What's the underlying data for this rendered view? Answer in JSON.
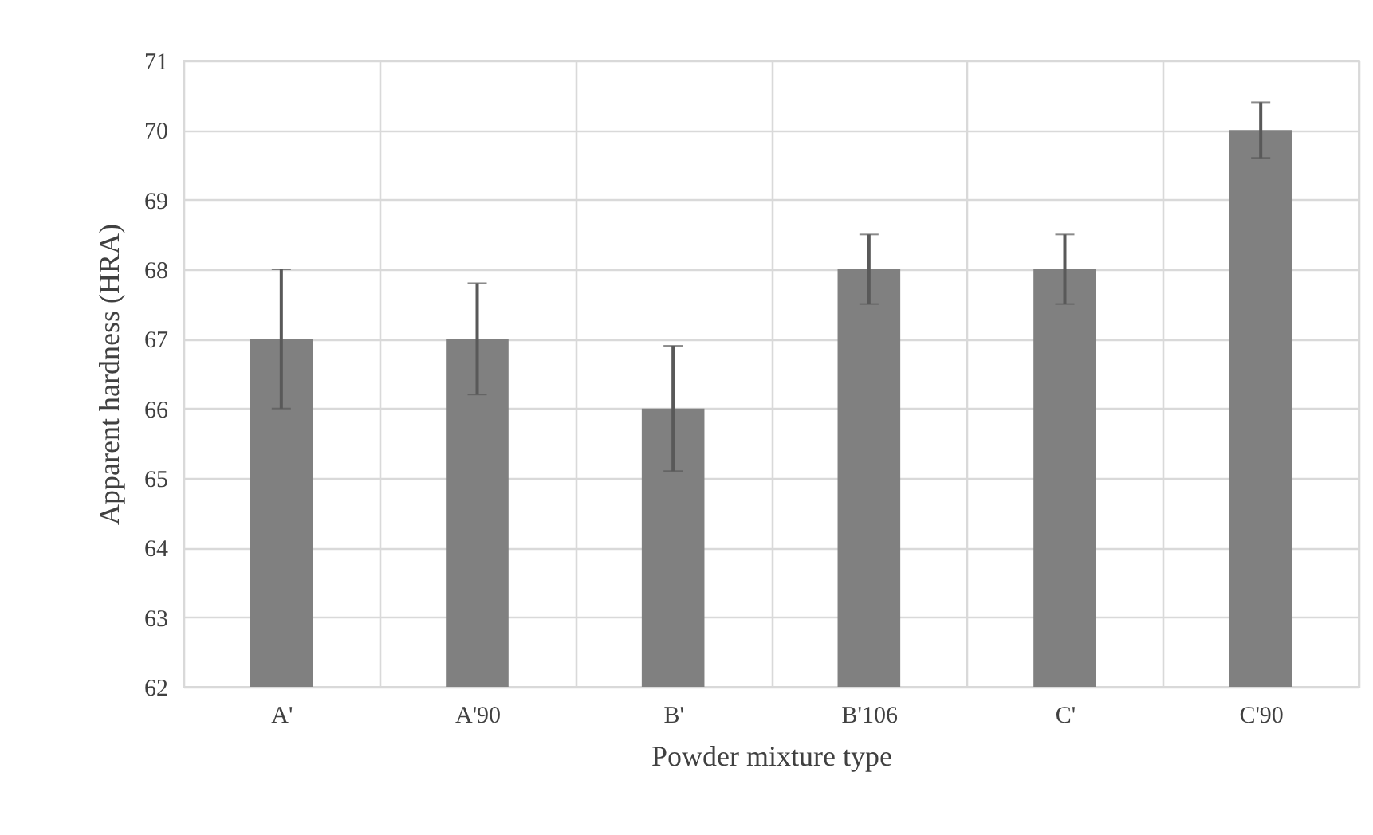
{
  "chart_data": {
    "type": "bar",
    "xlabel": "Powder mixture type",
    "ylabel": "Apparent hardness (HRA)",
    "categories": [
      "A'",
      "A'90",
      "B'",
      "B'106",
      "C'",
      "C'90"
    ],
    "values": [
      67,
      67,
      66,
      68,
      68,
      70
    ],
    "errors": [
      1,
      [
        66.2,
        67.8
      ],
      [
        65.1,
        66.9
      ],
      [
        67.5,
        68.5
      ],
      [
        67.5,
        68.5
      ],
      [
        69.6,
        70.4
      ]
    ],
    "color": "#808080",
    "ylim": [
      62,
      71
    ],
    "yticks": [
      62,
      63,
      64,
      65,
      66,
      67,
      68,
      69,
      70,
      71
    ],
    "grid": true
  }
}
